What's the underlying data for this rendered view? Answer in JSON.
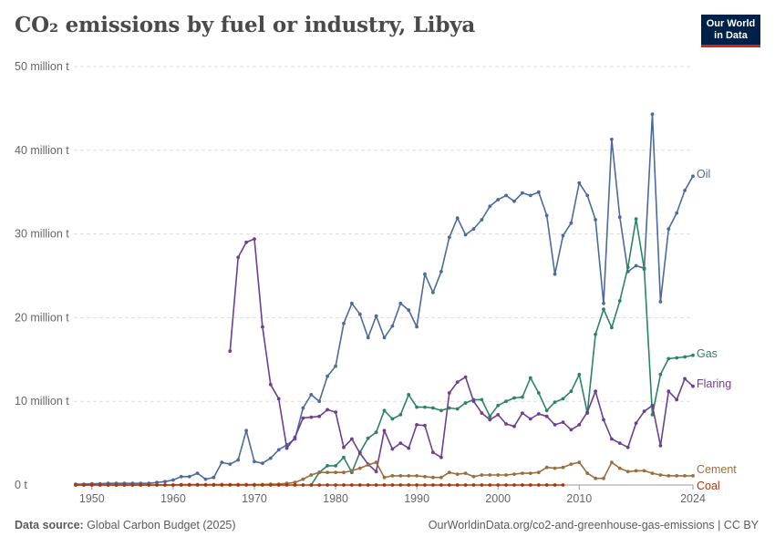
{
  "header": {
    "title": "CO₂ emissions by fuel or industry, Libya"
  },
  "logo": {
    "line1": "Our World",
    "line2": "in Data"
  },
  "footer": {
    "source_label": "Data source:",
    "source_text": " Global Carbon Budget (2025)",
    "url": "OurWorldinData.org/co2-and-greenhouse-gas-emissions | CC BY"
  },
  "chart_data": {
    "type": "line",
    "title": "CO₂ emissions by fuel or industry, Libya",
    "xlim": [
      1948,
      2024
    ],
    "ylim": [
      0,
      50000000
    ],
    "y_ticks": [
      {
        "value": 0,
        "label": "0 t"
      },
      {
        "value": 10000000,
        "label": "10 million t"
      },
      {
        "value": 20000000,
        "label": "20 million t"
      },
      {
        "value": 30000000,
        "label": "30 million t"
      },
      {
        "value": 40000000,
        "label": "40 million t"
      },
      {
        "value": 50000000,
        "label": "50 million t"
      }
    ],
    "x_ticks": [
      1950,
      1960,
      1970,
      1980,
      1990,
      2000,
      2010,
      2024
    ],
    "grid": "horizontal dashed",
    "legend": "inline labels at line ends",
    "colors": {
      "Oil": "#4c6a9c",
      "Gas": "#2c8465",
      "Flaring": "#6d3e91",
      "Cement": "#9a6f3d",
      "Coal": "#b13507"
    },
    "series": [
      {
        "name": "Oil",
        "x": [
          1948,
          1949,
          1950,
          1951,
          1952,
          1953,
          1954,
          1955,
          1956,
          1957,
          1958,
          1959,
          1960,
          1961,
          1962,
          1963,
          1964,
          1965,
          1966,
          1967,
          1968,
          1969,
          1970,
          1971,
          1972,
          1973,
          1974,
          1975,
          1976,
          1977,
          1978,
          1979,
          1980,
          1981,
          1982,
          1983,
          1984,
          1985,
          1986,
          1987,
          1988,
          1989,
          1990,
          1991,
          1992,
          1993,
          1994,
          1995,
          1996,
          1997,
          1998,
          1999,
          2000,
          2001,
          2002,
          2003,
          2004,
          2005,
          2006,
          2007,
          2008,
          2009,
          2010,
          2011,
          2012,
          2013,
          2014,
          2015,
          2016,
          2017,
          2018,
          2019,
          2020,
          2021,
          2022,
          2023,
          2024
        ],
        "y": [
          100000,
          100000,
          150000,
          150000,
          200000,
          200000,
          200000,
          200000,
          200000,
          200000,
          300000,
          400000,
          600000,
          1000000,
          1000000,
          1400000,
          700000,
          900000,
          2700000,
          2500000,
          3000000,
          6500000,
          2800000,
          2600000,
          3200000,
          4200000,
          4800000,
          5500000,
          9200000,
          10800000,
          10000000,
          13000000,
          14200000,
          19300000,
          21700000,
          20400000,
          17600000,
          20200000,
          17600000,
          19000000,
          21700000,
          20900000,
          18900000,
          25200000,
          23000000,
          25500000,
          29600000,
          31900000,
          29900000,
          30600000,
          31700000,
          33300000,
          34100000,
          34600000,
          33900000,
          34900000,
          34600000,
          35000000,
          32200000,
          25200000,
          29800000,
          31300000,
          36100000,
          34600000,
          31700000,
          21700000,
          41300000,
          32000000,
          25500000,
          26200000,
          25900000,
          44300000,
          21900000,
          30600000,
          32500000,
          35200000,
          36900000
        ]
      },
      {
        "name": "Gas",
        "x": [
          1977,
          1978,
          1979,
          1980,
          1981,
          1982,
          1983,
          1984,
          1985,
          1986,
          1987,
          1988,
          1989,
          1990,
          1991,
          1992,
          1993,
          1994,
          1995,
          1996,
          1997,
          1998,
          1999,
          2000,
          2001,
          2002,
          2003,
          2004,
          2005,
          2006,
          2007,
          2008,
          2009,
          2010,
          2011,
          2012,
          2013,
          2014,
          2015,
          2016,
          2017,
          2018,
          2019,
          2020,
          2021,
          2022,
          2023,
          2024
        ],
        "y": [
          0,
          1500000,
          2300000,
          2300000,
          3300000,
          1500000,
          3900000,
          5600000,
          6300000,
          8900000,
          7900000,
          8400000,
          10800000,
          9300000,
          9300000,
          9200000,
          8900000,
          9200000,
          9100000,
          9800000,
          10200000,
          10200000,
          8200000,
          9500000,
          10000000,
          10400000,
          10500000,
          12800000,
          11000000,
          8900000,
          9900000,
          10300000,
          11200000,
          13200000,
          8600000,
          18000000,
          21000000,
          18800000,
          22000000,
          26000000,
          31800000,
          25800000,
          8400000,
          13200000,
          15100000,
          15200000,
          15300000,
          15500000
        ]
      },
      {
        "name": "Flaring",
        "x": [
          1967,
          1968,
          1969,
          1970,
          1971,
          1972,
          1973,
          1974,
          1975,
          1976,
          1977,
          1978,
          1979,
          1980,
          1981,
          1982,
          1983,
          1984,
          1985,
          1986,
          1987,
          1988,
          1989,
          1990,
          1991,
          1992,
          1993,
          1994,
          1995,
          1996,
          1997,
          1998,
          1999,
          2000,
          2001,
          2002,
          2003,
          2004,
          2005,
          2006,
          2007,
          2008,
          2009,
          2010,
          2011,
          2012,
          2013,
          2014,
          2015,
          2016,
          2017,
          2018,
          2019,
          2020,
          2021,
          2022,
          2023,
          2024
        ],
        "y": [
          16000000,
          27200000,
          29000000,
          29400000,
          18900000,
          12000000,
          10300000,
          4400000,
          5700000,
          8000000,
          8100000,
          8200000,
          9000000,
          8700000,
          4500000,
          5500000,
          3800000,
          2500000,
          1600000,
          6500000,
          4300000,
          5000000,
          4400000,
          7200000,
          7100000,
          3900000,
          3300000,
          11000000,
          12300000,
          12900000,
          10000000,
          8600000,
          7800000,
          8400000,
          7300000,
          7000000,
          8600000,
          7900000,
          8500000,
          8200000,
          7200000,
          7500000,
          6600000,
          7200000,
          8700000,
          11200000,
          7800000,
          5500000,
          5000000,
          4500000,
          7400000,
          8800000,
          9500000,
          4700000,
          11200000,
          10200000,
          12700000,
          11800000
        ]
      },
      {
        "name": "Cement",
        "x": [
          1948,
          1949,
          1950,
          1951,
          1952,
          1953,
          1954,
          1955,
          1956,
          1957,
          1958,
          1959,
          1960,
          1961,
          1962,
          1963,
          1964,
          1965,
          1966,
          1967,
          1968,
          1969,
          1970,
          1971,
          1972,
          1973,
          1974,
          1975,
          1976,
          1977,
          1978,
          1979,
          1980,
          1981,
          1982,
          1983,
          1984,
          1985,
          1986,
          1987,
          1988,
          1989,
          1990,
          1991,
          1992,
          1993,
          1994,
          1995,
          1996,
          1997,
          1998,
          1999,
          2000,
          2001,
          2002,
          2003,
          2004,
          2005,
          2006,
          2007,
          2008,
          2009,
          2010,
          2011,
          2012,
          2013,
          2014,
          2015,
          2016,
          2017,
          2018,
          2019,
          2020,
          2021,
          2022,
          2023,
          2024
        ],
        "y": [
          0,
          0,
          0,
          0,
          0,
          0,
          0,
          0,
          0,
          0,
          0,
          0,
          0,
          50000,
          50000,
          50000,
          50000,
          50000,
          50000,
          50000,
          50000,
          50000,
          50000,
          50000,
          100000,
          100000,
          200000,
          300000,
          700000,
          1200000,
          1500000,
          1500000,
          1500000,
          1500000,
          1700000,
          2000000,
          2400000,
          2700000,
          900000,
          1100000,
          1100000,
          1100000,
          1100000,
          1000000,
          900000,
          900000,
          1500000,
          1300000,
          1400000,
          1000000,
          1200000,
          1200000,
          1200000,
          1200000,
          1300000,
          1400000,
          1400000,
          1500000,
          2100000,
          2000000,
          2100000,
          2500000,
          2700000,
          1400000,
          800000,
          800000,
          2700000,
          2000000,
          1600000,
          1700000,
          1700000,
          1400000,
          1200000,
          1100000,
          1100000,
          1100000,
          1100000
        ]
      },
      {
        "name": "Coal",
        "x": [
          1948,
          1949,
          1950,
          1951,
          1952,
          1953,
          1954,
          1955,
          1956,
          1957,
          1958,
          1959,
          1960,
          1961,
          1962,
          1963,
          1964,
          1965,
          1966,
          1967,
          1968,
          1969,
          1970,
          1971,
          1972,
          1973,
          1974,
          1975,
          1976,
          1977,
          1978,
          1979,
          1980,
          1981,
          1982,
          1983,
          1984,
          1985,
          1986,
          1987,
          1988,
          1989,
          1990,
          1991,
          1992,
          1993,
          1994,
          1995,
          1996,
          1997,
          1998,
          1999,
          2000,
          2001,
          2002,
          2003,
          2004,
          2005,
          2006,
          2007,
          2008
        ],
        "y": [
          0,
          0,
          0,
          0,
          0,
          0,
          0,
          0,
          0,
          0,
          0,
          0,
          0,
          0,
          0,
          0,
          0,
          0,
          0,
          0,
          0,
          0,
          0,
          0,
          0,
          0,
          0,
          0,
          0,
          0,
          0,
          0,
          0,
          0,
          0,
          0,
          0,
          0,
          0,
          0,
          0,
          0,
          0,
          0,
          0,
          0,
          0,
          0,
          0,
          0,
          0,
          0,
          0,
          0,
          0,
          0,
          0,
          0,
          0,
          0,
          0
        ]
      }
    ]
  }
}
